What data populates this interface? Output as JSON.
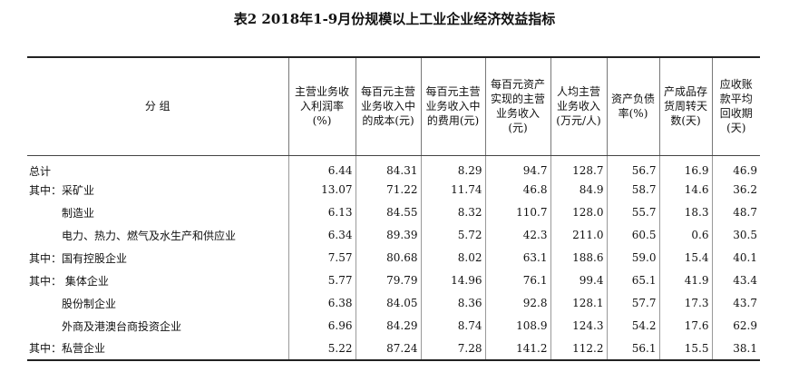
{
  "title": "表2 2018年1-9月份规模以上工业企业经济效益指标",
  "table": {
    "header": [
      "分 组",
      "主营业务收入利润率(%)",
      "每百元主营业务收入中的成本(元)",
      "每百元主营业务收入中的费用(元)",
      "每百元资产实现的主营业务收入(元)",
      "人均主营业务收入(万元/人)",
      "资产负债率(%)",
      "产成品存货周转天数(天)",
      "应收账款平均回收期(天)"
    ],
    "rows": [
      [
        "总计",
        "6.44",
        "84.31",
        "8.29",
        "94.7",
        "128.7",
        "56.7",
        "16.9",
        "46.9"
      ],
      [
        "其中：采矿业",
        "13.07",
        "71.22",
        "11.74",
        "46.8",
        "84.9",
        "58.7",
        "14.6",
        "36.2"
      ],
      [
        "制造业",
        "6.13",
        "84.55",
        "8.32",
        "110.7",
        "128.0",
        "55.7",
        "18.3",
        "48.7"
      ],
      [
        "电力、热力、燃气及水生产和供应业",
        "6.34",
        "89.39",
        "5.72",
        "42.3",
        "211.0",
        "60.5",
        "0.6",
        "30.5"
      ],
      [
        "其中：国有控股企业",
        "7.57",
        "80.68",
        "8.02",
        "63.1",
        "188.6",
        "59.0",
        "15.4",
        "40.1"
      ],
      [
        "其中： 集体企业",
        "5.77",
        "79.79",
        "14.96",
        "76.1",
        "99.4",
        "65.1",
        "41.9",
        "43.4"
      ],
      [
        "股份制企业",
        "6.38",
        "84.05",
        "8.36",
        "92.8",
        "128.1",
        "57.7",
        "17.3",
        "43.7"
      ],
      [
        "外商及港澳台商投资企业",
        "6.96",
        "84.29",
        "8.74",
        "108.9",
        "124.3",
        "54.2",
        "17.6",
        "62.9"
      ],
      [
        "其中：私营企业",
        "5.22",
        "87.24",
        "7.28",
        "141.2",
        "112.2",
        "56.1",
        "15.5",
        "38.1"
      ]
    ]
  }
}
